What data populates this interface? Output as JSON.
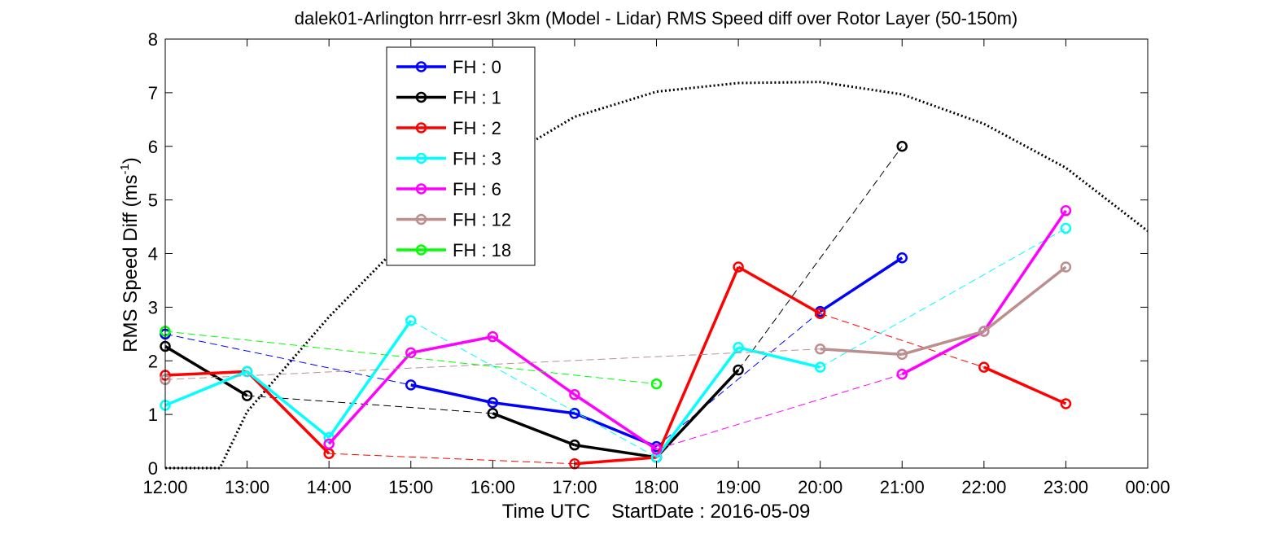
{
  "chart_data": {
    "type": "line",
    "title": "dalek01-Arlington hrrr-esrl 3km (Model - Lidar) RMS Speed diff over Rotor Layer (50-150m)",
    "xlabel": "Time UTC",
    "xlabel_suffix": "StartDate : 2016-05-09",
    "ylabel": "RMS Speed Diff (ms",
    "ylabel_sup": "-1",
    "ylabel_end": ")",
    "ylim": [
      0,
      8
    ],
    "yticks": [
      0,
      1,
      2,
      3,
      4,
      5,
      6,
      7,
      8
    ],
    "x_ticks": [
      "12:00",
      "13:00",
      "14:00",
      "15:00",
      "16:00",
      "17:00",
      "18:00",
      "19:00",
      "20:00",
      "21:00",
      "22:00",
      "23:00",
      "00:00"
    ],
    "grid": false,
    "legend_position": "top-left",
    "series": [
      {
        "name": "FH : 0",
        "color": "#0000ff",
        "points": [
          [
            "12:00",
            2.5
          ],
          [
            "15:00",
            1.55
          ],
          [
            "16:00",
            1.22
          ],
          [
            "17:00",
            1.02
          ],
          [
            "18:00",
            0.4
          ],
          [
            "20:00",
            2.92
          ],
          [
            "21:00",
            3.92
          ]
        ]
      },
      {
        "name": "FH : 1",
        "color": "#000000",
        "points": [
          [
            "12:00",
            2.27
          ],
          [
            "13:00",
            1.35
          ],
          [
            "16:00",
            1.02
          ],
          [
            "17:00",
            0.43
          ],
          [
            "18:00",
            0.2
          ],
          [
            "19:00",
            1.83
          ],
          [
            "21:00",
            6.0
          ]
        ]
      },
      {
        "name": "FH : 2",
        "color": "#ff0000",
        "points": [
          [
            "12:00",
            1.73
          ],
          [
            "13:00",
            1.8
          ],
          [
            "14:00",
            0.27
          ],
          [
            "17:00",
            0.08
          ],
          [
            "18:00",
            0.2
          ],
          [
            "19:00",
            3.75
          ],
          [
            "20:00",
            2.88
          ],
          [
            "22:00",
            1.88
          ],
          [
            "23:00",
            1.2
          ]
        ]
      },
      {
        "name": "FH : 3",
        "color": "#00ffff",
        "points": [
          [
            "12:00",
            1.17
          ],
          [
            "13:00",
            1.8
          ],
          [
            "14:00",
            0.57
          ],
          [
            "15:00",
            2.75
          ],
          [
            "18:00",
            0.2
          ],
          [
            "19:00",
            2.25
          ],
          [
            "20:00",
            1.88
          ],
          [
            "23:00",
            4.47
          ]
        ]
      },
      {
        "name": "FH : 6",
        "color": "#ff00ff",
        "points": [
          [
            "14:00",
            0.45
          ],
          [
            "15:00",
            2.15
          ],
          [
            "16:00",
            2.45
          ],
          [
            "17:00",
            1.37
          ],
          [
            "18:00",
            0.35
          ],
          [
            "21:00",
            1.75
          ],
          [
            "22:00",
            2.55
          ],
          [
            "23:00",
            4.8
          ]
        ]
      },
      {
        "name": "FH : 12",
        "color": "#bc8f8f",
        "points": [
          [
            "12:00",
            1.65
          ],
          [
            "20:00",
            2.22
          ],
          [
            "21:00",
            2.12
          ],
          [
            "22:00",
            2.55
          ],
          [
            "23:00",
            3.75
          ]
        ]
      },
      {
        "name": "FH : 18",
        "color": "#00ff00",
        "points": [
          [
            "12:00",
            2.55
          ],
          [
            "18:00",
            1.57
          ]
        ]
      }
    ],
    "reference_curve": {
      "style": "dotted",
      "color": "#000000",
      "x": [
        "12:00",
        "12:40",
        "13:00",
        "14:00",
        "15:00",
        "16:00",
        "17:00",
        "18:00",
        "19:00",
        "20:00",
        "21:00",
        "22:00",
        "23:00",
        "00:00"
      ],
      "y": [
        0,
        0,
        1.05,
        2.82,
        4.38,
        5.65,
        6.55,
        7.02,
        7.18,
        7.2,
        6.97,
        6.42,
        5.6,
        4.42
      ]
    }
  }
}
